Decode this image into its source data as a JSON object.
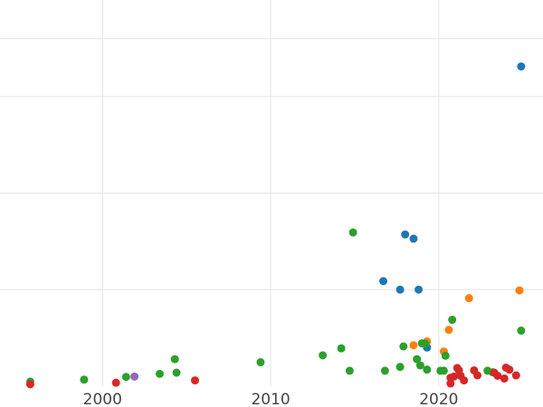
{
  "chart_data": {
    "type": "scatter",
    "title": "",
    "xlabel": "",
    "ylabel": "",
    "xlim": [
      1993.9,
      2026.2
    ],
    "ylim": [
      0,
      100
    ],
    "x_ticks": [
      2000,
      2010,
      2020
    ],
    "x_tick_labels": [
      "2000",
      "2010",
      "2020"
    ],
    "y_gridlines": [
      25,
      50,
      75,
      90
    ],
    "grid": true,
    "legend": "none",
    "series": [
      {
        "color": "#1f77b4",
        "x": [
          2024.9,
          2018.0,
          2018.5,
          2016.7,
          2017.7,
          2018.8,
          2019.3
        ],
        "y": [
          82.8,
          39.3,
          38.2,
          27.2,
          25.0,
          25.0,
          10.0
        ]
      },
      {
        "color": "#ff7f0e",
        "x": [
          2024.8,
          2021.8,
          2020.6,
          2019.3,
          2018.5,
          2020.3
        ],
        "y": [
          24.8,
          22.8,
          14.6,
          11.6,
          10.6,
          9.0
        ]
      },
      {
        "color": "#2ca02c",
        "x": [
          1995.7,
          1998.9,
          2001.4,
          2003.4,
          2004.4,
          2004.3,
          2009.4,
          2013.1,
          2014.2,
          2014.9,
          2014.7,
          2016.8,
          2017.7,
          2017.9,
          2018.7,
          2018.9,
          2019.0,
          2019.2,
          2019.3,
          2020.1,
          2020.3,
          2020.4,
          2020.8,
          2022.9,
          2023.2,
          2024.9
        ],
        "y": [
          1.2,
          1.7,
          2.4,
          3.2,
          3.5,
          7.0,
          6.2,
          8.0,
          9.8,
          39.8,
          4.0,
          4.0,
          5.0,
          10.3,
          7.0,
          5.4,
          11.1,
          11.0,
          4.3,
          4.0,
          4.0,
          7.9,
          17.2,
          4.0,
          3.6,
          14.4
        ]
      },
      {
        "color": "#d62728",
        "x": [
          1995.7,
          2000.8,
          2005.5,
          2020.7,
          2020.7,
          2020.9,
          2021.1,
          2021.2,
          2021.3,
          2021.5,
          2022.1,
          2022.3,
          2023.3,
          2023.5,
          2023.9,
          2024.0,
          2024.2,
          2024.6
        ],
        "y": [
          0.5,
          0.9,
          1.5,
          0.7,
          2.2,
          2.5,
          4.7,
          4.1,
          2.7,
          1.5,
          4.1,
          2.8,
          3.5,
          2.7,
          2.0,
          4.8,
          4.3,
          2.8
        ]
      },
      {
        "color": "#9467bd",
        "x": [
          2001.9
        ],
        "y": [
          2.5
        ]
      }
    ]
  }
}
